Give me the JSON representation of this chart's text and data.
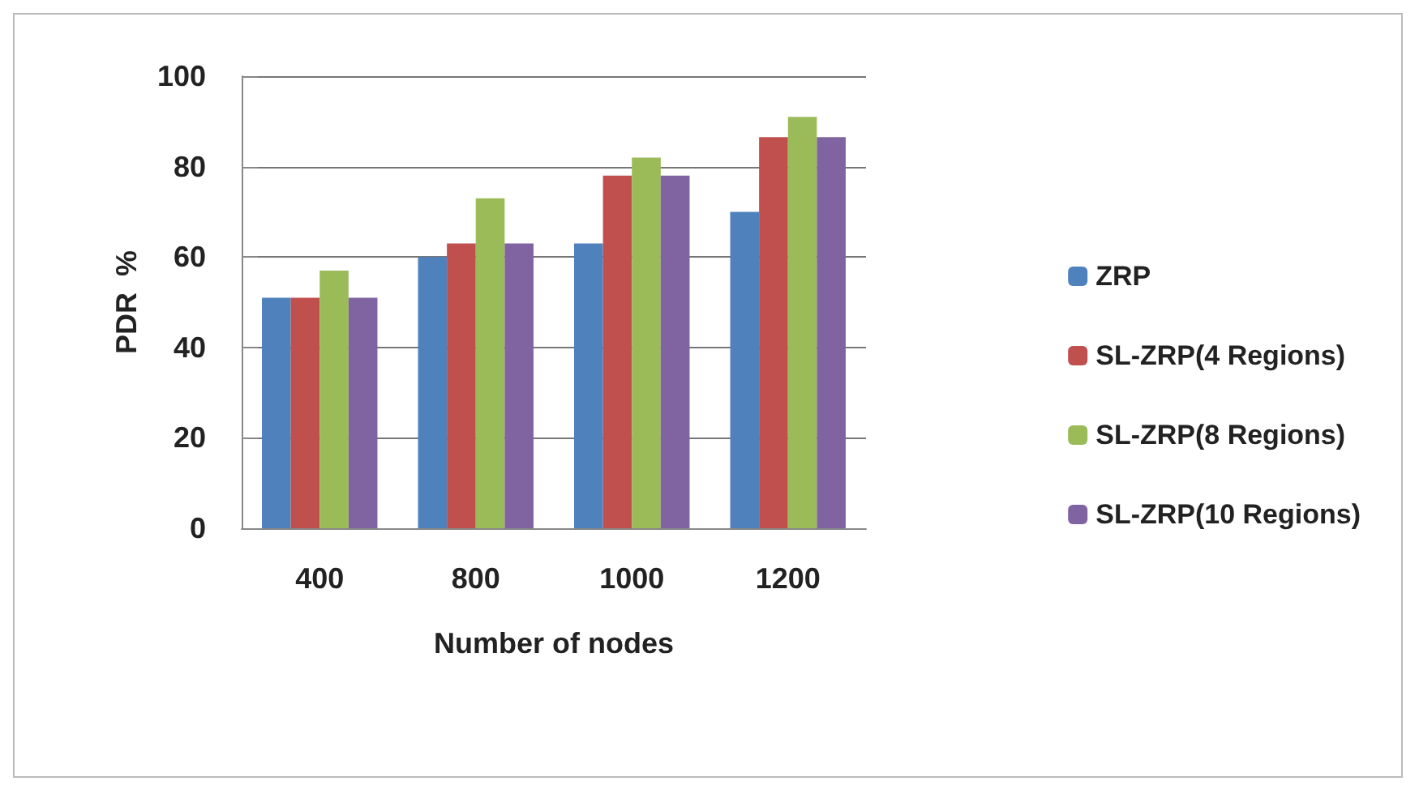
{
  "chart_data": {
    "type": "bar",
    "xlabel": "Number of nodes",
    "ylabel": "PDR  %",
    "categories": [
      "400",
      "800",
      "1000",
      "1200"
    ],
    "series": [
      {
        "name": "ZRP",
        "color": "#4f81bd",
        "values": [
          51,
          60,
          63,
          70
        ]
      },
      {
        "name": "SL-ZRP(4 Regions)",
        "color": "#c0504d",
        "values": [
          51,
          63,
          78,
          86.5
        ]
      },
      {
        "name": "SL-ZRP(8 Regions)",
        "color": "#9bbb59",
        "values": [
          57,
          73,
          82,
          91
        ]
      },
      {
        "name": "SL-ZRP(10 Regions)",
        "color": "#8064a2",
        "values": [
          51,
          63,
          78,
          86.5
        ]
      }
    ],
    "ylim": [
      0,
      100
    ],
    "yticks": [
      0,
      20,
      40,
      60,
      80,
      100
    ],
    "grid": "y",
    "legend": "right"
  }
}
